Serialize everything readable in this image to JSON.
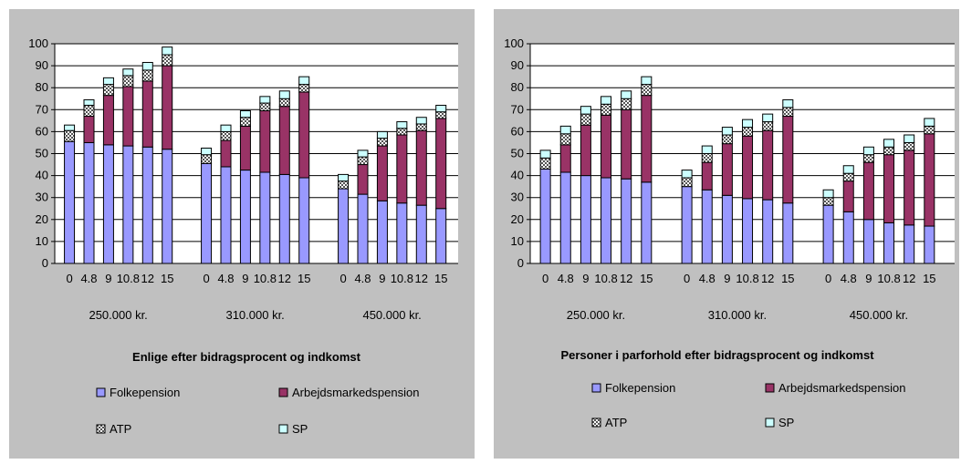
{
  "colors": {
    "Folkepension": "#9999ff",
    "Arbejdsmarkedspension": "#993366",
    "ATP": "#7f7f7f",
    "SP": "#ccffff",
    "panel_bg": "#c0c0c0",
    "plot_bg": "#ffffff"
  },
  "chart_data": [
    {
      "type": "bar",
      "stacked": true,
      "title": "Enlige efter bidragsprocent og indkomst",
      "ylim": [
        0,
        100
      ],
      "yticks": [
        0,
        10,
        20,
        30,
        40,
        50,
        60,
        70,
        80,
        90,
        100
      ],
      "grid": true,
      "legend_position": "bottom",
      "groups": [
        {
          "label": "250.000 kr.",
          "categories": [
            "0",
            "4.8",
            "9",
            "10.8",
            "12",
            "15"
          ]
        },
        {
          "label": "310.000 kr.",
          "categories": [
            "0",
            "4.8",
            "9",
            "10.8",
            "12",
            "15"
          ]
        },
        {
          "label": "450.000 kr.",
          "categories": [
            "0",
            "4.8",
            "9",
            "10.8",
            "12",
            "15"
          ]
        }
      ],
      "series": [
        {
          "name": "Folkepension",
          "values": [
            55.5,
            55,
            54,
            53.5,
            53,
            52,
            45.5,
            44,
            42.5,
            41.5,
            40.5,
            39,
            34,
            31.5,
            28.5,
            27.5,
            26.5,
            25
          ]
        },
        {
          "name": "Arbejdsmarkedspension",
          "values": [
            0,
            12,
            22.5,
            27,
            30,
            38,
            0,
            12,
            20,
            28,
            31,
            39,
            0,
            13.5,
            25,
            31,
            34,
            41
          ]
        },
        {
          "name": "ATP",
          "values": [
            5,
            5,
            5,
            5,
            5,
            5,
            4,
            4,
            4,
            3.5,
            3.5,
            3.5,
            3.5,
            3.5,
            3.5,
            3,
            3,
            3
          ]
        },
        {
          "name": "SP",
          "values": [
            2.5,
            2.5,
            3,
            3,
            3.5,
            3.5,
            3,
            3,
            3,
            3,
            3.5,
            3.5,
            3,
            3,
            3,
            3,
            3,
            3
          ]
        }
      ]
    },
    {
      "type": "bar",
      "stacked": true,
      "title": "Personer i parforhold efter bidragsprocent og indkomst",
      "ylim": [
        0,
        100
      ],
      "yticks": [
        0,
        10,
        20,
        30,
        40,
        50,
        60,
        70,
        80,
        90,
        100
      ],
      "grid": true,
      "legend_position": "bottom",
      "groups": [
        {
          "label": "250.000 kr.",
          "categories": [
            "0",
            "4.8",
            "9",
            "10.8",
            "12",
            "15"
          ]
        },
        {
          "label": "310.000 kr.",
          "categories": [
            "0",
            "4.8",
            "9",
            "10.8",
            "12",
            "15"
          ]
        },
        {
          "label": "450.000 kr.",
          "categories": [
            "0",
            "4.8",
            "9",
            "10.8",
            "12",
            "15"
          ]
        }
      ],
      "series": [
        {
          "name": "Folkepension",
          "values": [
            43,
            41.5,
            40,
            39,
            38.5,
            37,
            35,
            33.5,
            31,
            29.5,
            29,
            27.5,
            26.5,
            23.5,
            20,
            18.5,
            17.5,
            17
          ]
        },
        {
          "name": "Arbejdsmarkedspension",
          "values": [
            0,
            12.5,
            23,
            28.5,
            31.5,
            39.5,
            0,
            12.5,
            23.5,
            28.5,
            31.5,
            39.5,
            0,
            14,
            26,
            31,
            34,
            42
          ]
        },
        {
          "name": "ATP",
          "values": [
            5,
            5,
            5,
            5,
            5,
            5,
            4,
            4,
            4,
            4,
            4,
            4,
            3.5,
            3.5,
            3.5,
            3.5,
            3.5,
            3.5
          ]
        },
        {
          "name": "SP",
          "values": [
            3.5,
            3.5,
            3.5,
            3.5,
            3.5,
            3.5,
            3.5,
            3.5,
            3.5,
            3.5,
            3.5,
            3.5,
            3.5,
            3.5,
            3.5,
            3.5,
            3.5,
            3.5
          ]
        }
      ]
    }
  ]
}
